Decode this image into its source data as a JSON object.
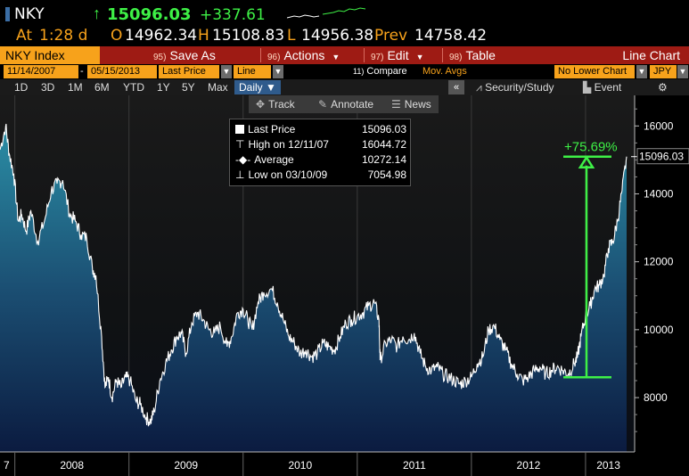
{
  "header": {
    "ticker": "NKY",
    "last_price": "15096.03",
    "change": "+337.61",
    "time_label": "At",
    "time_value": "1:28 d",
    "open_label": "O",
    "open_value": "14962.34",
    "high_label": "H",
    "high_value": "15108.83",
    "low_label": "L",
    "low_value": "14956.38",
    "prev_label": "Prev",
    "prev_value": "14758.42",
    "colors": {
      "up": "#3ef046",
      "label": "#f7a21b",
      "menu": "#9e1b14"
    }
  },
  "menubar": {
    "title": "NKY Index",
    "items": [
      {
        "num": "95)",
        "label": "Save As"
      },
      {
        "num": "96)",
        "label": "Actions"
      },
      {
        "num": "97)",
        "label": "Edit"
      },
      {
        "num": "98)",
        "label": "Table"
      }
    ],
    "right_title": "Line Chart"
  },
  "settings": {
    "start_date": "11/14/2007",
    "dash": "-",
    "end_date": "05/15/2013",
    "field": "Last Price",
    "style": "Line",
    "compare_num": "11)",
    "compare": "Compare",
    "mov_avgs": "Mov. Avgs",
    "lower_chart": "No Lower Chart",
    "currency": "JPY"
  },
  "periods": {
    "items": [
      "1D",
      "3D",
      "1M",
      "6M",
      "YTD",
      "1Y",
      "5Y",
      "Max"
    ],
    "selected": "Daily",
    "collapse": "«",
    "security": "Security/Study",
    "event": "Event"
  },
  "tools": {
    "track": "Track",
    "annotate": "Annotate",
    "news": "News"
  },
  "legend": {
    "rows": [
      {
        "label": "Last Price",
        "value": "15096.03"
      },
      {
        "label": "High on 12/11/07",
        "value": "16044.72"
      },
      {
        "label": "Average",
        "value": "10272.14"
      },
      {
        "label": "Low on 03/10/09",
        "value": "7054.98"
      }
    ]
  },
  "chart_data": {
    "type": "area",
    "title": "",
    "xlabel": "",
    "ylabel": "",
    "ylim": [
      6400,
      16900
    ],
    "yticks": [
      8000,
      10000,
      12000,
      14000,
      16000
    ],
    "ytick_labels": [
      "8000",
      "10000",
      "12000",
      "14000",
      "16000"
    ],
    "year_labels": [
      "7",
      "2008",
      "2009",
      "2010",
      "2011",
      "2012",
      "2013"
    ],
    "last_value_label": "15096.03",
    "annotation_label": "+75.69%",
    "annotation_from": 8600,
    "annotation_to": 15096,
    "series": [
      {
        "x": [
          2007.87,
          2007.92,
          2007.95,
          2007.99,
          2008.03,
          2008.06,
          2008.1,
          2008.14,
          2008.2,
          2008.26,
          2008.32,
          2008.37,
          2008.42,
          2008.48,
          2008.53,
          2008.58,
          2008.63,
          2008.68,
          2008.71,
          2008.76,
          2008.79,
          2008.82,
          2008.85,
          2008.89,
          2008.93,
          2008.97,
          2009.01,
          2009.06,
          2009.1,
          2009.15,
          2009.19,
          2009.22,
          2009.27,
          2009.32,
          2009.37,
          2009.42,
          2009.46,
          2009.5,
          2009.55,
          2009.6,
          2009.65,
          2009.7,
          2009.75,
          2009.8,
          2009.86,
          2009.9,
          2009.95,
          2010.0,
          2010.04,
          2010.08,
          2010.13,
          2010.18,
          2010.25,
          2010.3,
          2010.35,
          2010.4,
          2010.45,
          2010.5,
          2010.55,
          2010.6,
          2010.65,
          2010.7,
          2010.75,
          2010.8,
          2010.85,
          2010.9,
          2010.95,
          2011.0,
          2011.05,
          2011.1,
          2011.15,
          2011.19,
          2011.2,
          2011.25,
          2011.3,
          2011.35,
          2011.4,
          2011.45,
          2011.5,
          2011.55,
          2011.6,
          2011.65,
          2011.7,
          2011.75,
          2011.8,
          2011.85,
          2011.9,
          2011.95,
          2012.0,
          2012.05,
          2012.1,
          2012.15,
          2012.2,
          2012.25,
          2012.3,
          2012.35,
          2012.4,
          2012.45,
          2012.5,
          2012.55,
          2012.6,
          2012.65,
          2012.7,
          2012.75,
          2012.8,
          2012.85,
          2012.9,
          2012.93,
          2012.96,
          2013.0,
          2013.04,
          2013.08,
          2013.12,
          2013.16,
          2013.2,
          2013.24,
          2013.28,
          2013.32,
          2013.36
        ],
        "values": [
          15300,
          16000,
          15200,
          14600,
          13200,
          13400,
          12900,
          13500,
          12600,
          13200,
          14100,
          14300,
          14400,
          13400,
          13200,
          12800,
          12700,
          11800,
          11600,
          9800,
          8300,
          8600,
          8000,
          8500,
          8300,
          8600,
          8500,
          7900,
          7800,
          7400,
          7300,
          7600,
          8500,
          9000,
          9400,
          9800,
          9900,
          9300,
          10200,
          10500,
          10300,
          10000,
          9900,
          10100,
          9500,
          9800,
          10500,
          10600,
          10300,
          10000,
          10800,
          11100,
          11200,
          10800,
          10300,
          9800,
          9600,
          9300,
          9400,
          9200,
          9300,
          9600,
          9500,
          9400,
          9800,
          10200,
          10300,
          10400,
          10500,
          10700,
          10800,
          10300,
          9100,
          9600,
          9700,
          9500,
          9800,
          9700,
          9900,
          9300,
          8900,
          8800,
          8900,
          8700,
          8600,
          8500,
          8400,
          8500,
          8600,
          9000,
          9200,
          10000,
          10100,
          9700,
          9400,
          9000,
          8700,
          8500,
          8600,
          8800,
          8900,
          8700,
          8800,
          8900,
          8800,
          8700,
          9000,
          9200,
          9800,
          10400,
          10700,
          11200,
          11300,
          11600,
          12400,
          12600,
          13200,
          14100,
          15096
        ]
      }
    ]
  }
}
